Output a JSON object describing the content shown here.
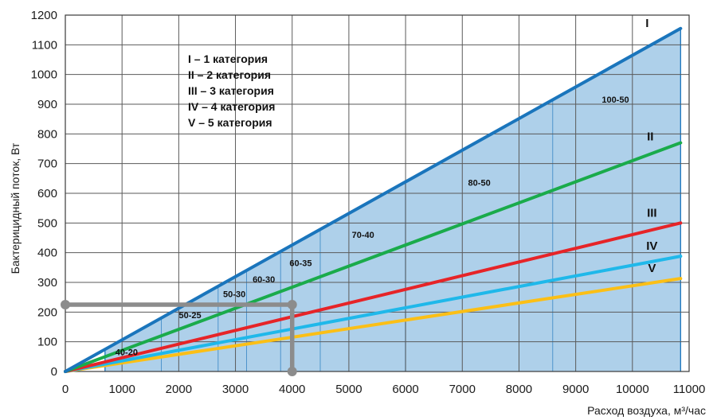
{
  "chart_data": {
    "type": "line",
    "title": "",
    "xlabel": "Расход воздуха, м³/час",
    "ylabel": "Бактерицидный поток, Вт",
    "xlim": [
      0,
      11000
    ],
    "ylim": [
      0,
      1200
    ],
    "x_ticks": [
      "0",
      "1000",
      "2000",
      "3000",
      "4000",
      "5000",
      "6000",
      "7000",
      "8000",
      "9000",
      "10000",
      "11000"
    ],
    "y_ticks": [
      "0",
      "100",
      "200",
      "300",
      "400",
      "500",
      "600",
      "700",
      "800",
      "900",
      "1000",
      "1100",
      "1200"
    ],
    "grid": true,
    "series": [
      {
        "name": "I",
        "color": "#1a75bc",
        "x": [
          0,
          10850
        ],
        "y": [
          0,
          1155
        ]
      },
      {
        "name": "II",
        "color": "#1aab4b",
        "x": [
          0,
          10850
        ],
        "y": [
          0,
          770
        ]
      },
      {
        "name": "III",
        "color": "#e62428",
        "x": [
          0,
          10850
        ],
        "y": [
          0,
          500
        ]
      },
      {
        "name": "IV",
        "color": "#1fb8ea",
        "x": [
          0,
          10850
        ],
        "y": [
          0,
          388
        ]
      },
      {
        "name": "V",
        "color": "#fbbf16",
        "x": [
          0,
          10850
        ],
        "y": [
          0,
          313
        ]
      }
    ],
    "legend": [
      "I – 1 категория",
      "II – 2 категория",
      "III – 3 категория",
      "IV – 4 категория",
      "V – 5 категория"
    ],
    "zones": [
      {
        "label": "40-20",
        "x_from": 700,
        "x_to": 1700,
        "label_x": 1080,
        "label_y": 55
      },
      {
        "label": "50-25",
        "x_from": 1700,
        "x_to": 2700,
        "label_x": 2200,
        "label_y": 180
      },
      {
        "label": "50-30",
        "x_from": 2700,
        "x_to": 3200,
        "label_x": 2980,
        "label_y": 250
      },
      {
        "label": "60-30",
        "x_from": 3200,
        "x_to": 3800,
        "label_x": 3500,
        "label_y": 300
      },
      {
        "label": "60-35",
        "x_from": 3800,
        "x_to": 4500,
        "label_x": 4150,
        "label_y": 355
      },
      {
        "label": "70-40",
        "x_from": 4500,
        "x_to": 6000,
        "label_x": 5250,
        "label_y": 450
      },
      {
        "label": "80-50",
        "x_from": 6000,
        "x_to": 8600,
        "label_x": 7300,
        "label_y": 625
      },
      {
        "label": "100-50",
        "x_from": 8600,
        "x_to": 10850,
        "label_x": 9700,
        "label_y": 905
      }
    ],
    "example_path": {
      "x": [
        0,
        4000,
        4000
      ],
      "y": [
        225,
        225,
        0
      ]
    }
  }
}
